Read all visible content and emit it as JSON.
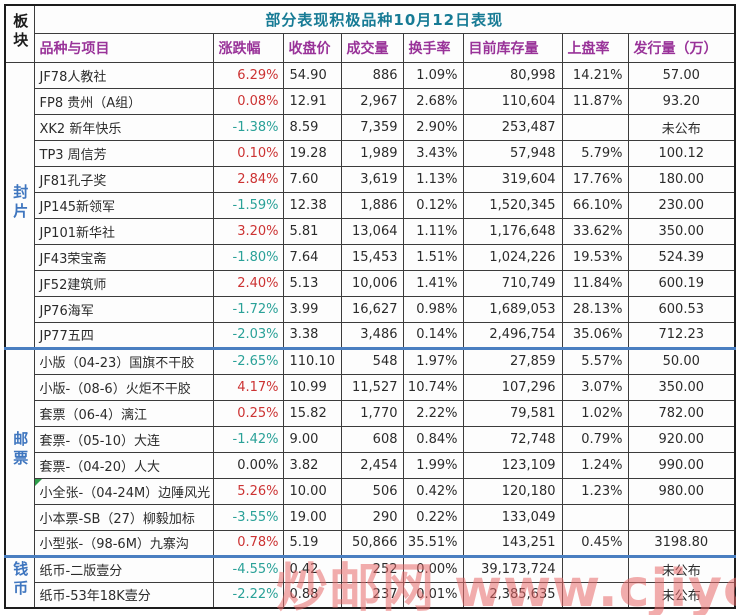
{
  "title": "部分表现积极品种10月12日表现",
  "block_header": "板块",
  "columns": [
    "品种与项目",
    "涨跌幅",
    "收盘价",
    "成交量",
    "换手率",
    "目前库存量",
    "上盘率",
    "发行量（万）"
  ],
  "sections": [
    {
      "name": "封片",
      "rows": [
        {
          "name": "JF78人教社",
          "change": "6.29%",
          "close": "54.90",
          "volume": "886",
          "turnover": "1.09%",
          "inventory": "80,998",
          "listing": "14.21%",
          "issuance": "57.00"
        },
        {
          "name": "FP8 贵州（A组）",
          "change": "0.08%",
          "close": "12.91",
          "volume": "2,967",
          "turnover": "2.68%",
          "inventory": "110,604",
          "listing": "11.87%",
          "issuance": "93.20"
        },
        {
          "name": "XK2 新年快乐",
          "change": "-1.38%",
          "close": "8.59",
          "volume": "7,359",
          "turnover": "2.90%",
          "inventory": "253,487",
          "listing": "",
          "issuance": "未公布"
        },
        {
          "name": "TP3 周信芳",
          "change": "0.10%",
          "close": "19.28",
          "volume": "1,989",
          "turnover": "3.43%",
          "inventory": "57,948",
          "listing": "5.79%",
          "issuance": "100.12"
        },
        {
          "name": "JF81孔子奖",
          "change": "2.84%",
          "close": "7.60",
          "volume": "3,619",
          "turnover": "1.13%",
          "inventory": "319,604",
          "listing": "17.76%",
          "issuance": "180.00"
        },
        {
          "name": "JP145新领军",
          "change": "-1.59%",
          "close": "12.38",
          "volume": "1,886",
          "turnover": "0.12%",
          "inventory": "1,520,345",
          "listing": "66.10%",
          "issuance": "230.00"
        },
        {
          "name": "JP101新华社",
          "change": "3.20%",
          "close": "5.81",
          "volume": "13,064",
          "turnover": "1.11%",
          "inventory": "1,176,648",
          "listing": "33.62%",
          "issuance": "350.00"
        },
        {
          "name": "JF43荣宝斋",
          "change": "-1.80%",
          "close": "7.64",
          "volume": "15,453",
          "turnover": "1.51%",
          "inventory": "1,024,226",
          "listing": "19.53%",
          "issuance": "524.39"
        },
        {
          "name": "JF52建筑师",
          "change": "2.40%",
          "close": "5.13",
          "volume": "10,006",
          "turnover": "1.41%",
          "inventory": "710,749",
          "listing": "11.84%",
          "issuance": "600.19"
        },
        {
          "name": "JP76海军",
          "change": "-1.72%",
          "close": "3.99",
          "volume": "16,627",
          "turnover": "0.98%",
          "inventory": "1,689,053",
          "listing": "28.13%",
          "issuance": "600.53"
        },
        {
          "name": "JP77五四",
          "change": "-2.03%",
          "close": "3.38",
          "volume": "3,486",
          "turnover": "0.14%",
          "inventory": "2,496,754",
          "listing": "35.06%",
          "issuance": "712.23"
        }
      ]
    },
    {
      "name": "邮票",
      "rows": [
        {
          "name": "小版（04-23）国旗不干胶",
          "change": "-2.65%",
          "close": "110.10",
          "volume": "548",
          "turnover": "1.97%",
          "inventory": "27,859",
          "listing": "5.57%",
          "issuance": "50.00"
        },
        {
          "name": "小版-（08-6）火炬不干胶",
          "change": "4.17%",
          "close": "10.99",
          "volume": "11,527",
          "turnover": "10.74%",
          "inventory": "107,296",
          "listing": "3.07%",
          "issuance": "350.00"
        },
        {
          "name": "套票（06-4）漓江",
          "change": "0.25%",
          "close": "15.82",
          "volume": "1,770",
          "turnover": "2.22%",
          "inventory": "79,581",
          "listing": "1.02%",
          "issuance": "782.00"
        },
        {
          "name": "套票-（05-10）大连",
          "change": "-1.42%",
          "close": "9.00",
          "volume": "608",
          "turnover": "0.84%",
          "inventory": "72,748",
          "listing": "0.79%",
          "issuance": "920.00"
        },
        {
          "name": "套票-（04-20）人大",
          "change": "0.00%",
          "close": "3.82",
          "volume": "2,454",
          "turnover": "1.99%",
          "inventory": "123,109",
          "listing": "1.24%",
          "issuance": "990.00"
        },
        {
          "name": "小全张-（04-24M）边陲风光",
          "change": "5.26%",
          "close": "10.00",
          "volume": "506",
          "turnover": "0.42%",
          "inventory": "120,180",
          "listing": "1.23%",
          "issuance": "980.00",
          "corner_mark": true
        },
        {
          "name": "小本票-SB（27）柳毅加标",
          "change": "-3.55%",
          "close": "19.00",
          "volume": "290",
          "turnover": "0.22%",
          "inventory": "133,049",
          "listing": "",
          "issuance": ""
        },
        {
          "name": "小型张-（98-6M）九寨沟",
          "change": "0.78%",
          "close": "5.19",
          "volume": "50,866",
          "turnover": "35.51%",
          "inventory": "143,251",
          "listing": "0.45%",
          "issuance": "3198.80"
        }
      ]
    },
    {
      "name": "钱币",
      "rows": [
        {
          "name": "纸币-二版壹分",
          "change": "-4.55%",
          "close": "0.42",
          "volume": "252",
          "turnover": "0.00%",
          "inventory": "39,173,724",
          "listing": "",
          "issuance": "未公布"
        },
        {
          "name": "纸币-53年18K壹分",
          "change": "-2.22%",
          "close": "0.88",
          "volume": "237",
          "turnover": "0.01%",
          "inventory": "2,385,635",
          "listing": "",
          "issuance": "未公布"
        }
      ]
    }
  ],
  "watermark": {
    "text": "炒邮网 www.cjiyou.net"
  },
  "colors": {
    "title": "#177b95",
    "header": "#993399",
    "section_label": "#3f76bf",
    "positive": "#cc3333",
    "negative": "#2aa198",
    "divider": "#4a7fc1",
    "watermark": "#e86a6a"
  }
}
